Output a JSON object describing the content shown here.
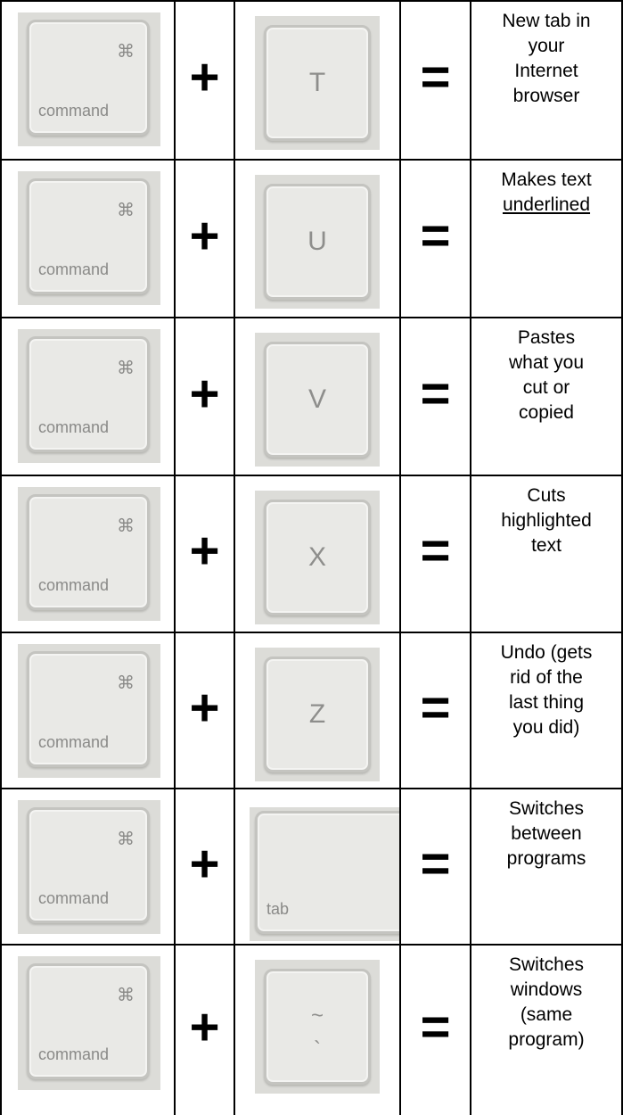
{
  "rows": [
    {
      "modifier": {
        "symbol": "⌘",
        "label": "command"
      },
      "plus": "+",
      "key": {
        "main": "T"
      },
      "equals": "=",
      "description": [
        "New tab in",
        "your",
        "Internet",
        "browser"
      ]
    },
    {
      "modifier": {
        "symbol": "⌘",
        "label": "command"
      },
      "plus": "+",
      "key": {
        "main": "U"
      },
      "equals": "=",
      "description": [
        "Makes text",
        "underlined"
      ]
    },
    {
      "modifier": {
        "symbol": "⌘",
        "label": "command"
      },
      "plus": "+",
      "key": {
        "main": "V"
      },
      "equals": "=",
      "description": [
        "Pastes",
        "what you",
        "cut or",
        "copied"
      ]
    },
    {
      "modifier": {
        "symbol": "⌘",
        "label": "command"
      },
      "plus": "+",
      "key": {
        "main": "X"
      },
      "equals": "=",
      "description": [
        "Cuts",
        "highlighted",
        "text"
      ]
    },
    {
      "modifier": {
        "symbol": "⌘",
        "label": "command"
      },
      "plus": "+",
      "key": {
        "main": "Z"
      },
      "equals": "=",
      "description": [
        "Undo (gets",
        "rid of the",
        "last thing",
        "you did)"
      ]
    },
    {
      "modifier": {
        "symbol": "⌘",
        "label": "command"
      },
      "plus": "+",
      "key": {
        "corner": "tab"
      },
      "equals": "=",
      "description": [
        "Switches",
        "between",
        "programs"
      ]
    },
    {
      "modifier": {
        "symbol": "⌘",
        "label": "command"
      },
      "plus": "+",
      "key": {
        "main": "~",
        "sub": "`"
      },
      "equals": "=",
      "description": [
        "Switches",
        "windows",
        "(same",
        "program)"
      ]
    }
  ]
}
